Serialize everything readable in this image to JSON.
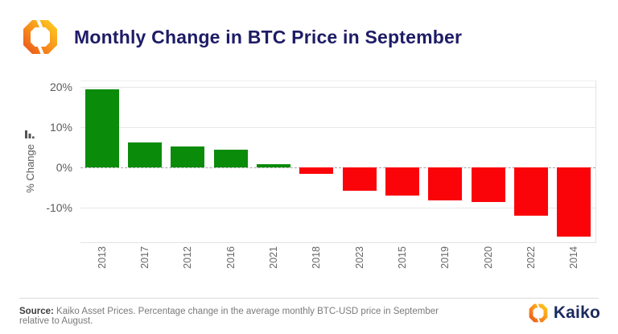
{
  "header": {
    "title": "Monthly Change in BTC Price in September"
  },
  "icons": {
    "header_logo": "kaiko-logo",
    "y_axis_icon": "bar-chart-icon",
    "footer_logo": "kaiko-logo"
  },
  "chart_data": {
    "type": "bar",
    "title": "Monthly Change in BTC Price in September",
    "categories": [
      "2013",
      "2017",
      "2012",
      "2016",
      "2021",
      "2018",
      "2023",
      "2015",
      "2019",
      "2020",
      "2022",
      "2014"
    ],
    "values": [
      19.4,
      6.2,
      5.3,
      4.5,
      0.8,
      -1.5,
      -5.8,
      -6.9,
      -8.1,
      -8.5,
      -12.0,
      -17.2
    ],
    "xlabel": "",
    "ylabel": "% Change",
    "y_ticks": [
      20,
      10,
      0,
      -10
    ],
    "y_tick_labels": [
      "20%",
      "10%",
      "0%",
      "-10%"
    ],
    "ylim": [
      -18.6,
      21.4
    ],
    "grid": true,
    "zero_line_dashed": true,
    "legend": "none",
    "positive_color": "#0a8c0a",
    "negative_color": "#fa040a"
  },
  "footer": {
    "source_label": "Source:",
    "source_text": " Kaiko Asset Prices. Percentage change in the average monthly BTC-USD price in September relative to August.",
    "brand": "Kaiko"
  },
  "colors": {
    "title_navy": "#1e1c66",
    "brand_navy": "#1b2a5e",
    "brand_orange": "#f7941d",
    "positive_green": "#0a8c0a",
    "negative_red": "#fa040a"
  }
}
